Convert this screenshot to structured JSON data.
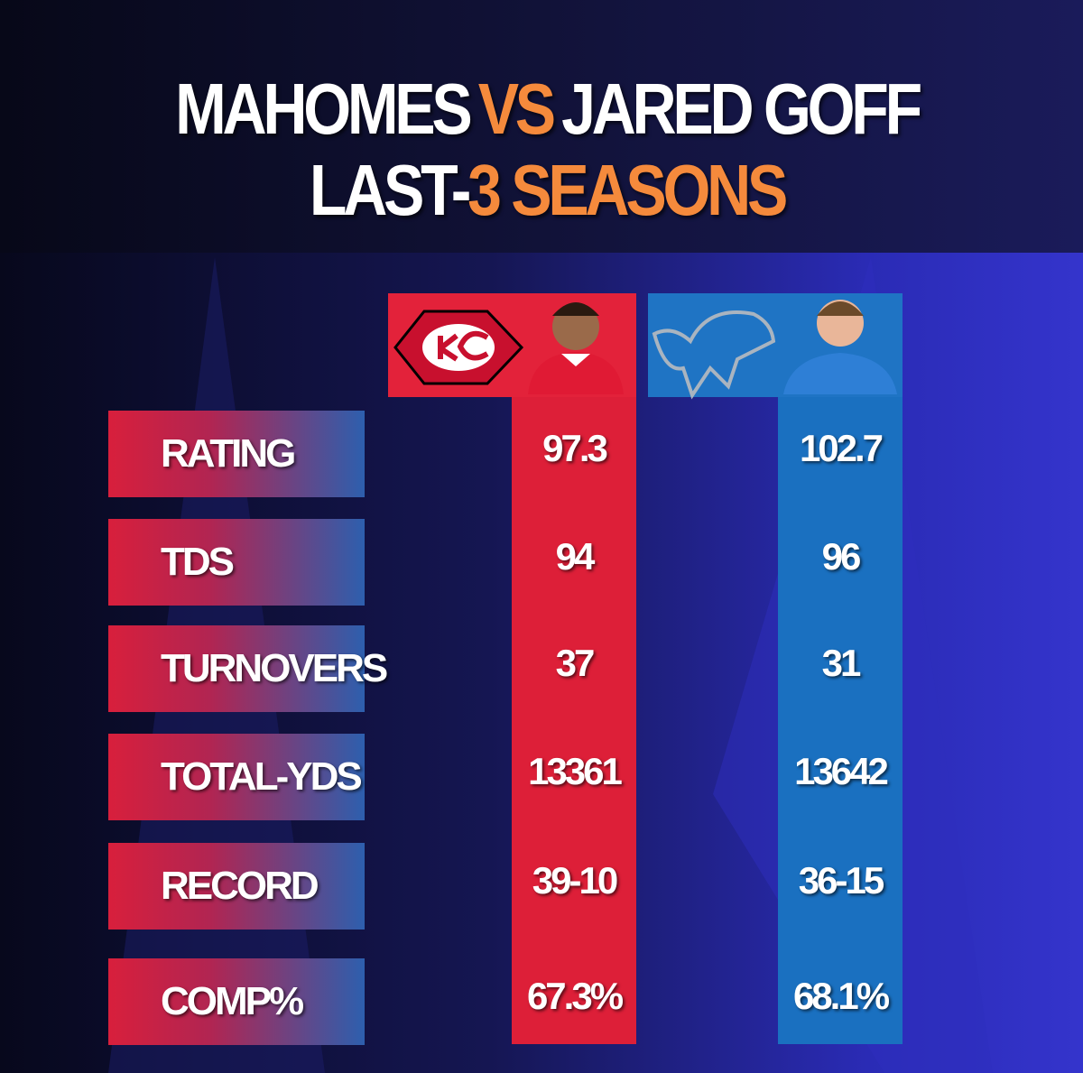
{
  "title": {
    "line1": [
      "MAHOMES",
      "VS",
      "JARED GOFF"
    ],
    "line2": [
      "LAST-",
      "3 SEASONS"
    ]
  },
  "table": {
    "rows": [
      [
        "RATING",
        "97.3",
        "102.7"
      ],
      [
        "TDS",
        "94",
        "96"
      ],
      [
        "TURNOVERS",
        "37",
        "31"
      ],
      [
        "TOTAL-YDS",
        "13361",
        "13642"
      ],
      [
        "RECORD",
        "39-10",
        "36-15"
      ],
      [
        "COMP%",
        "67.3%",
        "68.1%"
      ]
    ]
  }
}
